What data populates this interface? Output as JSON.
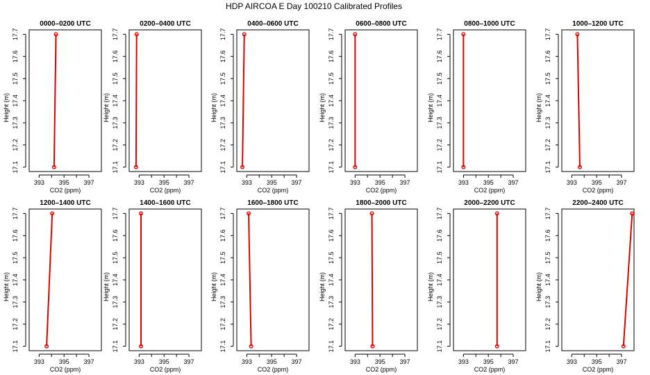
{
  "figure": {
    "title": "HDP AIRCOA E  Day 100210  Calibrated Profiles"
  },
  "colors": {
    "series": "#dd0000",
    "axes": "#000000",
    "background": "#ffffff"
  },
  "chart_data": [
    {
      "type": "line",
      "title": "0000–0200 UTC",
      "xlabel": "CO2 (ppm)",
      "ylabel": "Height (m)",
      "xlim": [
        392.2,
        398.0
      ],
      "ylim": [
        17.08,
        17.72
      ],
      "xticks": [
        393,
        394,
        395,
        396,
        397
      ],
      "xticklabels": [
        "393",
        "",
        "395",
        "",
        "397"
      ],
      "yticks": [
        17.1,
        17.2,
        17.3,
        17.4,
        17.5,
        17.6,
        17.7
      ],
      "series": [
        {
          "x": [
            394.2,
            394.35
          ],
          "y": [
            17.1,
            17.7
          ]
        }
      ]
    },
    {
      "type": "line",
      "title": "0200–0400 UTC",
      "xlabel": "CO2 (ppm)",
      "ylabel": "Height (m)",
      "xlim": [
        392.2,
        398.0
      ],
      "ylim": [
        17.08,
        17.72
      ],
      "xticks": [
        393,
        394,
        395,
        396,
        397
      ],
      "xticklabels": [
        "393",
        "",
        "395",
        "",
        "397"
      ],
      "yticks": [
        17.1,
        17.2,
        17.3,
        17.4,
        17.5,
        17.6,
        17.7
      ],
      "series": [
        {
          "x": [
            392.75,
            392.8
          ],
          "y": [
            17.1,
            17.7
          ]
        }
      ]
    },
    {
      "type": "line",
      "title": "0400–0600 UTC",
      "xlabel": "CO2 (ppm)",
      "ylabel": "Height (m)",
      "xlim": [
        392.2,
        398.0
      ],
      "ylim": [
        17.08,
        17.72
      ],
      "xticks": [
        393,
        394,
        395,
        396,
        397
      ],
      "xticklabels": [
        "393",
        "",
        "395",
        "",
        "397"
      ],
      "yticks": [
        17.1,
        17.2,
        17.3,
        17.4,
        17.5,
        17.6,
        17.7
      ],
      "series": [
        {
          "x": [
            392.65,
            392.8
          ],
          "y": [
            17.1,
            17.7
          ]
        }
      ]
    },
    {
      "type": "line",
      "title": "0600–0800 UTC",
      "xlabel": "CO2 (ppm)",
      "ylabel": "Height (m)",
      "xlim": [
        392.2,
        398.0
      ],
      "ylim": [
        17.08,
        17.72
      ],
      "xticks": [
        393,
        394,
        395,
        396,
        397
      ],
      "xticklabels": [
        "393",
        "",
        "395",
        "",
        "397"
      ],
      "yticks": [
        17.1,
        17.2,
        17.3,
        17.4,
        17.5,
        17.6,
        17.7
      ],
      "series": [
        {
          "x": [
            393.0,
            393.0
          ],
          "y": [
            17.1,
            17.7
          ]
        }
      ]
    },
    {
      "type": "line",
      "title": "0800–1000 UTC",
      "xlabel": "CO2 (ppm)",
      "ylabel": "Height (m)",
      "xlim": [
        392.2,
        398.0
      ],
      "ylim": [
        17.08,
        17.72
      ],
      "xticks": [
        393,
        394,
        395,
        396,
        397
      ],
      "xticklabels": [
        "393",
        "",
        "395",
        "",
        "397"
      ],
      "yticks": [
        17.1,
        17.2,
        17.3,
        17.4,
        17.5,
        17.6,
        17.7
      ],
      "series": [
        {
          "x": [
            393.0,
            393.0
          ],
          "y": [
            17.1,
            17.7
          ]
        }
      ]
    },
    {
      "type": "line",
      "title": "1000–1200 UTC",
      "xlabel": "CO2 (ppm)",
      "ylabel": "Height (m)",
      "xlim": [
        392.2,
        398.0
      ],
      "ylim": [
        17.08,
        17.72
      ],
      "xticks": [
        393,
        394,
        395,
        396,
        397
      ],
      "xticklabels": [
        "393",
        "",
        "395",
        "",
        "397"
      ],
      "yticks": [
        17.1,
        17.2,
        17.3,
        17.4,
        17.5,
        17.6,
        17.7
      ],
      "series": [
        {
          "x": [
            393.65,
            393.45
          ],
          "y": [
            17.1,
            17.7
          ]
        }
      ]
    },
    {
      "type": "line",
      "title": "1200–1400 UTC",
      "xlabel": "CO2 (ppm)",
      "ylabel": "Height (m)",
      "xlim": [
        392.2,
        398.0
      ],
      "ylim": [
        17.08,
        17.72
      ],
      "xticks": [
        393,
        394,
        395,
        396,
        397
      ],
      "xticklabels": [
        "393",
        "",
        "395",
        "",
        "397"
      ],
      "yticks": [
        17.1,
        17.2,
        17.3,
        17.4,
        17.5,
        17.6,
        17.7
      ],
      "series": [
        {
          "x": [
            393.6,
            394.05
          ],
          "y": [
            17.1,
            17.7
          ]
        }
      ]
    },
    {
      "type": "line",
      "title": "1400–1600 UTC",
      "xlabel": "CO2 (ppm)",
      "ylabel": "Height (m)",
      "xlim": [
        392.2,
        398.0
      ],
      "ylim": [
        17.08,
        17.72
      ],
      "xticks": [
        393,
        394,
        395,
        396,
        397
      ],
      "xticklabels": [
        "393",
        "",
        "395",
        "",
        "397"
      ],
      "yticks": [
        17.1,
        17.2,
        17.3,
        17.4,
        17.5,
        17.6,
        17.7
      ],
      "series": [
        {
          "x": [
            393.15,
            393.15
          ],
          "y": [
            17.1,
            17.7
          ]
        }
      ]
    },
    {
      "type": "line",
      "title": "1600–1800 UTC",
      "xlabel": "CO2 (ppm)",
      "ylabel": "Height (m)",
      "xlim": [
        392.2,
        398.0
      ],
      "ylim": [
        17.08,
        17.72
      ],
      "xticks": [
        393,
        394,
        395,
        396,
        397
      ],
      "xticklabels": [
        "393",
        "",
        "395",
        "",
        "397"
      ],
      "yticks": [
        17.1,
        17.2,
        17.3,
        17.4,
        17.5,
        17.6,
        17.7
      ],
      "series": [
        {
          "x": [
            393.35,
            393.15
          ],
          "y": [
            17.1,
            17.7
          ]
        }
      ]
    },
    {
      "type": "line",
      "title": "1800–2000 UTC",
      "xlabel": "CO2 (ppm)",
      "ylabel": "Height (m)",
      "xlim": [
        392.2,
        398.0
      ],
      "ylim": [
        17.08,
        17.72
      ],
      "xticks": [
        393,
        394,
        395,
        396,
        397
      ],
      "xticklabels": [
        "393",
        "",
        "395",
        "",
        "397"
      ],
      "yticks": [
        17.1,
        17.2,
        17.3,
        17.4,
        17.5,
        17.6,
        17.7
      ],
      "series": [
        {
          "x": [
            394.4,
            394.35
          ],
          "y": [
            17.1,
            17.7
          ]
        }
      ]
    },
    {
      "type": "line",
      "title": "2000–2200 UTC",
      "xlabel": "CO2 (ppm)",
      "ylabel": "Height (m)",
      "xlim": [
        392.2,
        398.0
      ],
      "ylim": [
        17.08,
        17.72
      ],
      "xticks": [
        393,
        394,
        395,
        396,
        397
      ],
      "xticklabels": [
        "393",
        "",
        "395",
        "",
        "397"
      ],
      "yticks": [
        17.1,
        17.2,
        17.3,
        17.4,
        17.5,
        17.6,
        17.7
      ],
      "series": [
        {
          "x": [
            395.7,
            395.7
          ],
          "y": [
            17.1,
            17.7
          ]
        }
      ]
    },
    {
      "type": "line",
      "title": "2200–2400 UTC",
      "xlabel": "CO2 (ppm)",
      "ylabel": "Height (m)",
      "xlim": [
        392.2,
        398.0
      ],
      "ylim": [
        17.08,
        17.72
      ],
      "xticks": [
        393,
        394,
        395,
        396,
        397
      ],
      "xticklabels": [
        "393",
        "",
        "395",
        "",
        "397"
      ],
      "yticks": [
        17.1,
        17.2,
        17.3,
        17.4,
        17.5,
        17.6,
        17.7
      ],
      "series": [
        {
          "x": [
            397.15,
            397.85
          ],
          "y": [
            17.1,
            17.7
          ]
        }
      ]
    }
  ]
}
